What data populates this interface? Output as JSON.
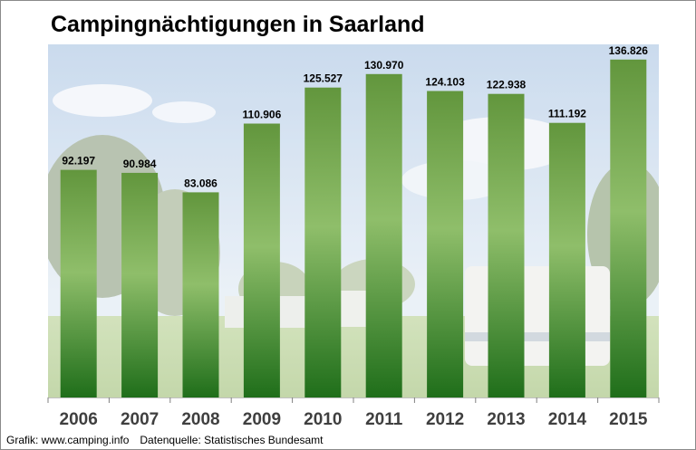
{
  "title": "Campingnächtigungen in Saarland",
  "footer": {
    "credit": "Grafik: www.camping.info",
    "source": "Datenquelle:  Statistisches Bundesamt"
  },
  "colors": {
    "bar_top": "#62963d",
    "bar_mid": "#8fbe6a",
    "bar_bottom": "#1f6e1a"
  },
  "chart_data": {
    "type": "bar",
    "title": "Campingnächtigungen in Saarland",
    "categories": [
      "2006",
      "2007",
      "2008",
      "2009",
      "2010",
      "2011",
      "2012",
      "2013",
      "2014",
      "2015"
    ],
    "values": [
      92197,
      90984,
      83086,
      110906,
      125527,
      130970,
      124103,
      122938,
      111192,
      136826
    ],
    "labels": [
      "92.197",
      "90.984",
      "83.086",
      "110.906",
      "125.527",
      "130.970",
      "124.103",
      "122.938",
      "111.192",
      "136.826"
    ],
    "xlabel": "",
    "ylabel": "",
    "ylim": [
      0,
      143000
    ],
    "grid": false
  }
}
